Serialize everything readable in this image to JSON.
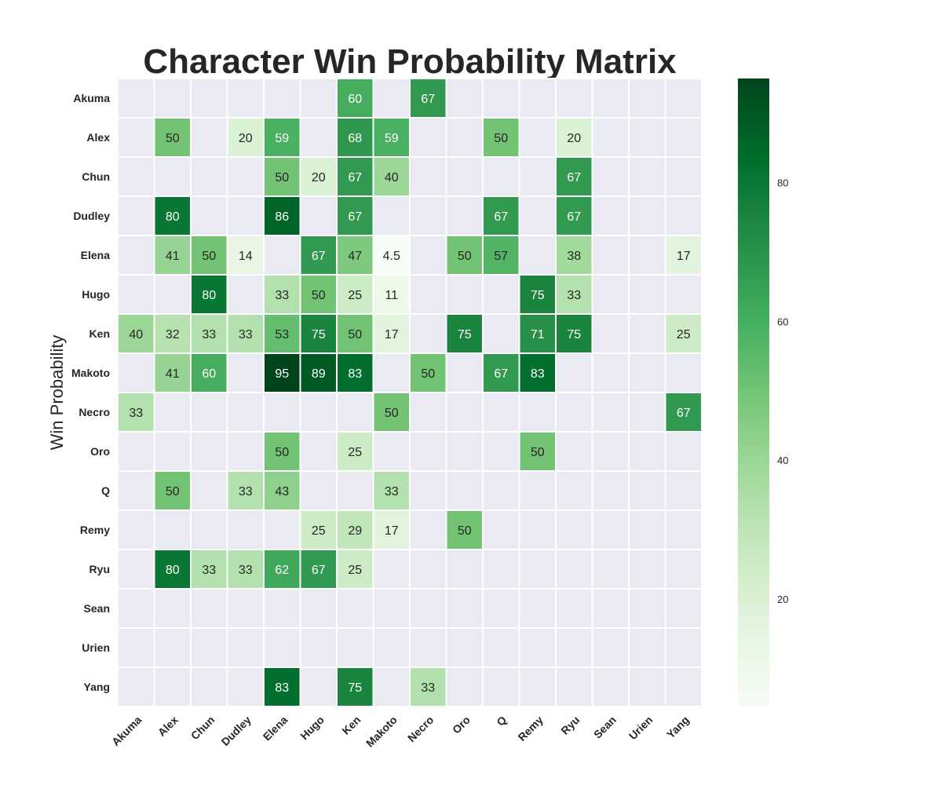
{
  "chart_data": {
    "type": "heatmap",
    "title": "Character Win Probability Matrix",
    "ylabel": "Win Probability",
    "xlabel": "",
    "rows": [
      "Akuma",
      "Alex",
      "Chun",
      "Dudley",
      "Elena",
      "Hugo",
      "Ken",
      "Makoto",
      "Necro",
      "Oro",
      "Q",
      "Remy",
      "Ryu",
      "Sean",
      "Urien",
      "Yang"
    ],
    "columns": [
      "Akuma",
      "Alex",
      "Chun",
      "Dudley",
      "Elena",
      "Hugo",
      "Ken",
      "Makoto",
      "Necro",
      "Oro",
      "Q",
      "Remy",
      "Ryu",
      "Sean",
      "Urien",
      "Yang"
    ],
    "values": [
      [
        null,
        null,
        null,
        null,
        null,
        null,
        60,
        null,
        67,
        null,
        null,
        null,
        null,
        null,
        null,
        null
      ],
      [
        null,
        50,
        null,
        20,
        59,
        null,
        68,
        59,
        null,
        null,
        50,
        null,
        20,
        null,
        null,
        null
      ],
      [
        null,
        null,
        null,
        null,
        50,
        20,
        67,
        40,
        null,
        null,
        null,
        null,
        67,
        null,
        null,
        null
      ],
      [
        null,
        80,
        null,
        null,
        86,
        null,
        67,
        null,
        null,
        null,
        67,
        null,
        67,
        null,
        null,
        null
      ],
      [
        null,
        41,
        50,
        14,
        null,
        67,
        47,
        4.5,
        null,
        50,
        57,
        null,
        38,
        null,
        null,
        17
      ],
      [
        null,
        null,
        80,
        null,
        33,
        50,
        25,
        11,
        null,
        null,
        null,
        75,
        33,
        null,
        null,
        null
      ],
      [
        40,
        32,
        33,
        33,
        53,
        75,
        50,
        17,
        null,
        75,
        null,
        71,
        75,
        null,
        null,
        25
      ],
      [
        null,
        41,
        60,
        null,
        95,
        89,
        83,
        null,
        50,
        null,
        67,
        83,
        null,
        null,
        null,
        null
      ],
      [
        33,
        null,
        null,
        null,
        null,
        null,
        null,
        50,
        null,
        null,
        null,
        null,
        null,
        null,
        null,
        67
      ],
      [
        null,
        null,
        null,
        null,
        50,
        null,
        25,
        null,
        null,
        null,
        null,
        50,
        null,
        null,
        null,
        null
      ],
      [
        null,
        50,
        null,
        33,
        43,
        null,
        null,
        33,
        null,
        null,
        null,
        null,
        null,
        null,
        null,
        null
      ],
      [
        null,
        null,
        null,
        null,
        null,
        25,
        29,
        17,
        null,
        50,
        null,
        null,
        null,
        null,
        null,
        null
      ],
      [
        null,
        80,
        33,
        33,
        62,
        67,
        25,
        null,
        null,
        null,
        null,
        null,
        null,
        null,
        null,
        null
      ],
      [
        null,
        null,
        null,
        null,
        null,
        null,
        null,
        null,
        null,
        null,
        null,
        null,
        null,
        null,
        null,
        null
      ],
      [
        null,
        null,
        null,
        null,
        null,
        null,
        null,
        null,
        null,
        null,
        null,
        null,
        null,
        null,
        null,
        null
      ],
      [
        null,
        null,
        null,
        null,
        83,
        null,
        75,
        null,
        33,
        null,
        null,
        null,
        null,
        null,
        null,
        null
      ]
    ],
    "colorscale": "Greens",
    "vmin": 4.5,
    "vmax": 95,
    "missing_color": "#eaeaf2",
    "colorbar_ticks": [
      20,
      40,
      60,
      80
    ],
    "grid": false,
    "legend": "colorbar-right"
  }
}
